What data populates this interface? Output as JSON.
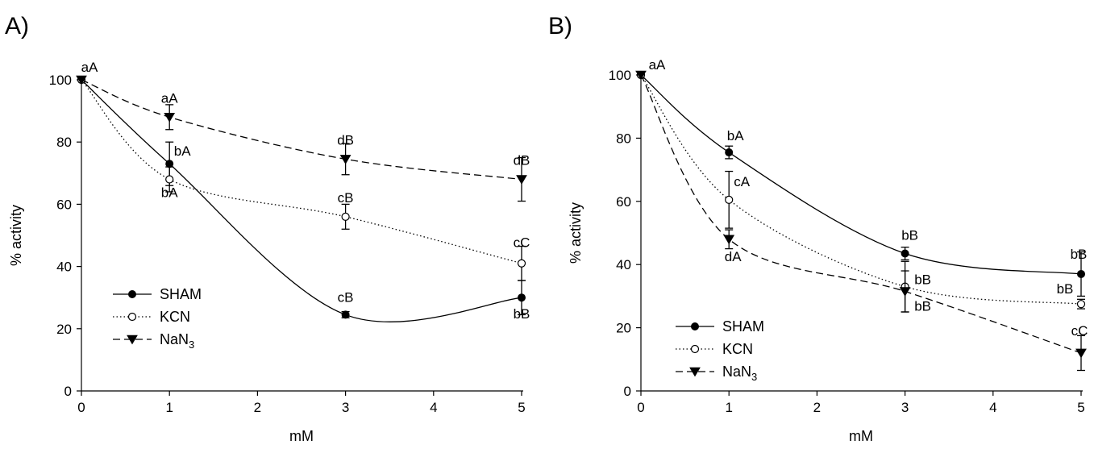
{
  "chart_data": [
    {
      "type": "line",
      "panel_label": "A)",
      "xlabel": "mM",
      "ylabel": "% activity",
      "xlim": [
        0,
        5
      ],
      "ylim": [
        0,
        100
      ],
      "xticks": [
        "0",
        "1",
        "2",
        "3",
        "4",
        "5"
      ],
      "yticks": [
        "0",
        "20",
        "40",
        "60",
        "80",
        "100"
      ],
      "grid": false,
      "legend_position": "bottom-left",
      "series": [
        {
          "name": "SHAM",
          "marker": "filled-circle",
          "line_style": "solid",
          "points": [
            {
              "x": 0,
              "y": 100,
              "err": 0
            },
            {
              "x": 1,
              "y": 73,
              "err": 7
            },
            {
              "x": 3,
              "y": 24.5,
              "err": 1
            },
            {
              "x": 5,
              "y": 30,
              "err": 5.5
            }
          ]
        },
        {
          "name": "KCN",
          "marker": "open-circle",
          "line_style": "dotted",
          "points": [
            {
              "x": 0,
              "y": 100,
              "err": 0
            },
            {
              "x": 1,
              "y": 68,
              "err": 4
            },
            {
              "x": 3,
              "y": 56,
              "err": 4
            },
            {
              "x": 5,
              "y": 41,
              "err": 5.5
            }
          ]
        },
        {
          "name": "NaN",
          "name_subscript": "3",
          "marker": "filled-triangle-down",
          "line_style": "dashed",
          "points": [
            {
              "x": 0,
              "y": 100,
              "err": 0
            },
            {
              "x": 1,
              "y": 88,
              "err": 4
            },
            {
              "x": 3,
              "y": 74.5,
              "err": 5
            },
            {
              "x": 5,
              "y": 68,
              "err": 7
            }
          ]
        }
      ],
      "annotations": [
        {
          "text": "aA",
          "x": 0,
          "y": 100
        },
        {
          "text": "aA",
          "x": 1,
          "y": 88
        },
        {
          "text": "bA",
          "x": 1,
          "y": 73
        },
        {
          "text": "bA",
          "x": 1,
          "y": 68
        },
        {
          "text": "dB",
          "x": 3,
          "y": 74.5
        },
        {
          "text": "cB",
          "x": 3,
          "y": 56
        },
        {
          "text": "cB",
          "x": 3,
          "y": 24.5
        },
        {
          "text": "dB",
          "x": 5,
          "y": 68
        },
        {
          "text": "cC",
          "x": 5,
          "y": 41
        },
        {
          "text": "bB",
          "x": 5,
          "y": 30
        }
      ]
    },
    {
      "type": "line",
      "panel_label": "B)",
      "xlabel": "mM",
      "ylabel": "% activity",
      "xlim": [
        0,
        5
      ],
      "ylim": [
        0,
        100
      ],
      "xticks": [
        "0",
        "1",
        "2",
        "3",
        "4",
        "5"
      ],
      "yticks": [
        "0",
        "20",
        "40",
        "60",
        "80",
        "100"
      ],
      "grid": false,
      "legend_position": "bottom-left",
      "series": [
        {
          "name": "SHAM",
          "marker": "filled-circle",
          "line_style": "solid",
          "points": [
            {
              "x": 0,
              "y": 100,
              "err": 0
            },
            {
              "x": 1,
              "y": 75.5,
              "err": 2
            },
            {
              "x": 3,
              "y": 43.5,
              "err": 2
            },
            {
              "x": 5,
              "y": 37,
              "err": 7
            }
          ]
        },
        {
          "name": "KCN",
          "marker": "open-circle",
          "line_style": "dotted",
          "points": [
            {
              "x": 0,
              "y": 100,
              "err": 0
            },
            {
              "x": 1,
              "y": 60.5,
              "err": 9
            },
            {
              "x": 3,
              "y": 33,
              "err": 8
            },
            {
              "x": 5,
              "y": 27.5,
              "err": 1.5
            }
          ]
        },
        {
          "name": "NaN",
          "name_subscript": "3",
          "marker": "filled-triangle-down",
          "line_style": "dashed",
          "points": [
            {
              "x": 0,
              "y": 100,
              "err": 0
            },
            {
              "x": 1,
              "y": 48,
              "err": 3
            },
            {
              "x": 3,
              "y": 31.5,
              "err": 6.5
            },
            {
              "x": 5,
              "y": 12,
              "err": 5.5
            }
          ]
        }
      ],
      "annotations": [
        {
          "text": "aA",
          "x": 0,
          "y": 100
        },
        {
          "text": "bA",
          "x": 1,
          "y": 75.5
        },
        {
          "text": "cA",
          "x": 1,
          "y": 60.5
        },
        {
          "text": "dA",
          "x": 1,
          "y": 48
        },
        {
          "text": "bB",
          "x": 3,
          "y": 43.5
        },
        {
          "text": "bB",
          "x": 3,
          "y": 33
        },
        {
          "text": "bB",
          "x": 3,
          "y": 31.5
        },
        {
          "text": "bB",
          "x": 5,
          "y": 37
        },
        {
          "text": "bB",
          "x": 5,
          "y": 27.5
        },
        {
          "text": "cC",
          "x": 5,
          "y": 12
        }
      ]
    }
  ]
}
